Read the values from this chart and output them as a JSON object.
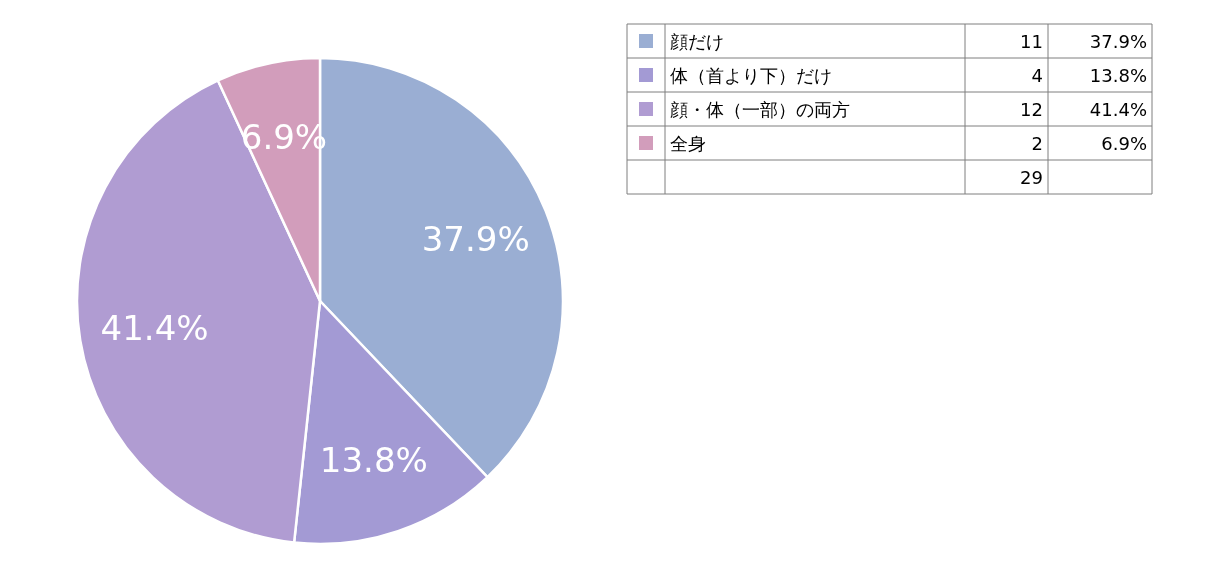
{
  "chart_data": {
    "type": "pie",
    "categories": [
      "顔だけ",
      "体（首より下）だけ",
      "顔・体（一部）の両方",
      "全身"
    ],
    "values": [
      37.9,
      13.8,
      41.4,
      6.9
    ],
    "colors": [
      "#9aaed3",
      "#a39ad4",
      "#b09cd2",
      "#d29dbb"
    ],
    "value_labels": [
      "37.9%",
      "13.8%",
      "41.4%",
      "6.9%"
    ],
    "annotations": [
      "11",
      "4",
      "12",
      "2",
      "29"
    ],
    "legend": "top right"
  }
}
